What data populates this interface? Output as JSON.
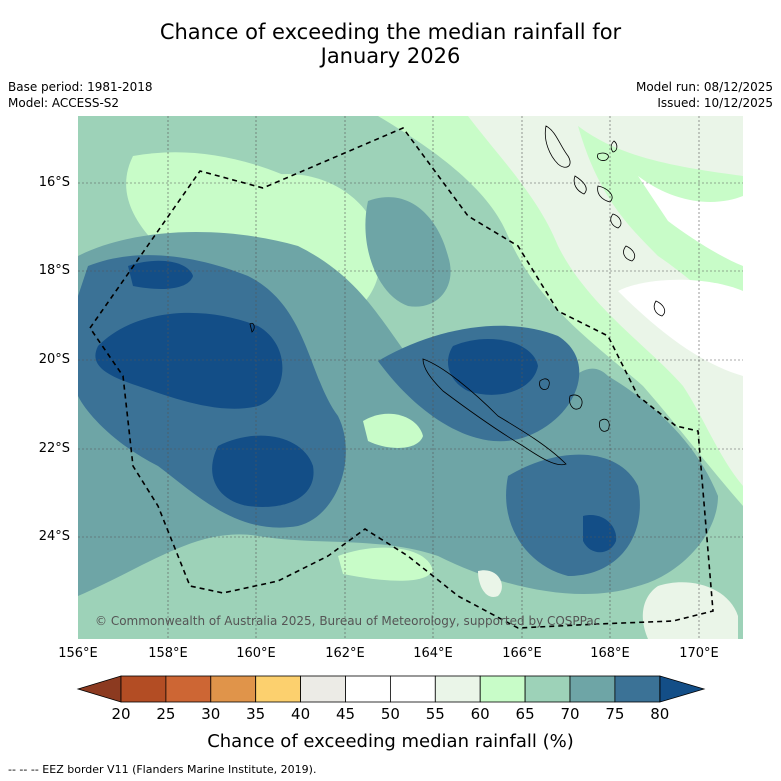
{
  "title": {
    "line1": "Chance of exceeding the median rainfall for",
    "line2": "January 2026"
  },
  "meta": {
    "base_period": "Base period: 1981-2018",
    "model": "Model: ACCESS-S2",
    "model_run": "Model run: 08/12/2025",
    "issued": "Issued: 10/12/2025"
  },
  "map": {
    "lat_labels": [
      "16°S",
      "18°S",
      "20°S",
      "22°S",
      "24°S"
    ],
    "lon_labels": [
      "156°E",
      "158°E",
      "160°E",
      "162°E",
      "164°E",
      "166°E",
      "168°E",
      "170°E"
    ],
    "copyright": "© Commonwealth of Australia 2025, Bureau of Meteorology, supported by COSPPac"
  },
  "colorbar": {
    "labels": [
      "20",
      "25",
      "30",
      "35",
      "40",
      "45",
      "50",
      "55",
      "60",
      "65",
      "70",
      "75",
      "80"
    ],
    "colors": [
      "#8c3a20",
      "#b34d24",
      "#cd6634",
      "#e0944a",
      "#fcd06e",
      "#ecebe6",
      "#ffffff",
      "#ffffff",
      "#eaf5e8",
      "#c8fcc8",
      "#9dd2b8",
      "#6ea5a6",
      "#3b7296",
      "#134e87"
    ],
    "title": "Chance of exceeding median rainfall (%)"
  },
  "footnote": "--  --  -- EEZ border V11 (Flanders Marine Institute, 2019)."
}
